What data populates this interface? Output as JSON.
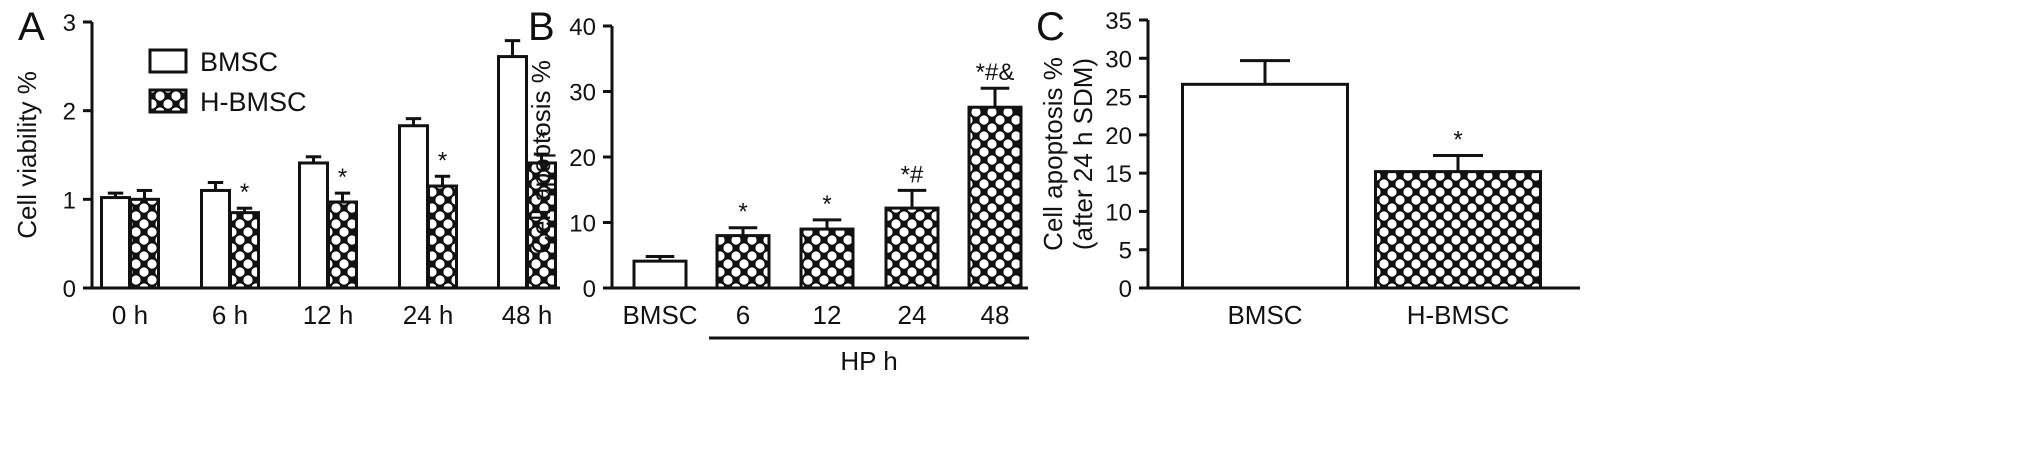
{
  "chart_data": [
    {
      "panel": "A",
      "type": "bar",
      "ylabel": "Cell viability %",
      "ylim": [
        0,
        3
      ],
      "yticks": [
        "0",
        "1",
        "2",
        "3"
      ],
      "categories": [
        "0 h",
        "6 h",
        "12 h",
        "24 h",
        "48 h"
      ],
      "legend_position": "top-left",
      "series": [
        {
          "name": "BMSC",
          "pattern": "white",
          "values": [
            1.02,
            1.1,
            1.41,
            1.83,
            2.61
          ],
          "errors": [
            0.05,
            0.09,
            0.07,
            0.08,
            0.18
          ],
          "annotations": [
            "",
            "",
            "",
            "",
            ""
          ]
        },
        {
          "name": "H-BMSC",
          "pattern": "crosshatch",
          "values": [
            1.0,
            0.85,
            0.97,
            1.15,
            1.41
          ],
          "errors": [
            0.1,
            0.05,
            0.1,
            0.11,
            0.1
          ],
          "annotations": [
            "",
            "*",
            "*",
            "*",
            "*"
          ]
        }
      ]
    },
    {
      "panel": "B",
      "type": "bar",
      "ylabel": "Cell apoptosis %",
      "ylim": [
        0,
        40
      ],
      "yticks": [
        "0",
        "10",
        "20",
        "30",
        "40"
      ],
      "categories": [
        "BMSC",
        "6",
        "12",
        "24",
        "48"
      ],
      "group_label": "HP h",
      "values": [
        4.1,
        8.0,
        9.0,
        12.2,
        27.6
      ],
      "errors": [
        0.7,
        1.2,
        1.4,
        2.7,
        2.9
      ],
      "patterns": [
        "white",
        "crosshatch",
        "crosshatch",
        "crosshatch",
        "crosshatch"
      ],
      "annotations": [
        "",
        "*",
        "*",
        "*#",
        "*#&"
      ]
    },
    {
      "panel": "C",
      "type": "bar",
      "ylabel": [
        "Cell apoptosis %",
        "(after 24 h SDM)"
      ],
      "ylim": [
        0,
        35
      ],
      "yticks": [
        "0",
        "5",
        "10",
        "15",
        "20",
        "25",
        "30",
        "35"
      ],
      "categories": [
        "BMSC",
        "H-BMSC"
      ],
      "values": [
        26.6,
        15.2
      ],
      "errors": [
        3.1,
        2.1
      ],
      "patterns": [
        "white",
        "crosshatch"
      ],
      "annotations": [
        "",
        "*"
      ]
    }
  ]
}
